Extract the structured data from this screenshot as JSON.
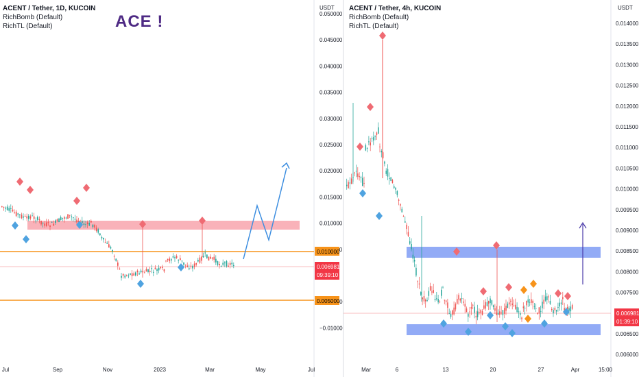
{
  "left_chart": {
    "header": {
      "symbol": "ACENT / Tether, 1D, KUCOIN",
      "indicators": [
        "RichBomb (Default)",
        "RichTL (Default)"
      ]
    },
    "annotation": "ACE !",
    "currency": "USDT",
    "y_ticks": [
      "0.050000",
      "0.045000",
      "0.040000",
      "0.035000",
      "0.030000",
      "0.025000",
      "0.020000",
      "0.015000",
      "0.010000",
      "0.005000",
      "−0.005000",
      "−0.010000"
    ],
    "x_ticks": [
      "Jul",
      "Sep",
      "Nov",
      "2023",
      "Mar",
      "May",
      "Jul"
    ],
    "price_tag": {
      "value": "0.006981",
      "timer": "09:39:10"
    },
    "level_labels": [
      "0.010000",
      "0.005000"
    ],
    "colors": {
      "support_line": "#f7931a",
      "resistance_zone": "#f8a5ad",
      "projection": "#3d8ee0",
      "price_tag": "#f23645"
    }
  },
  "right_chart": {
    "header": {
      "symbol": "ACENT / Tether, 4h, KUCOIN",
      "indicators": [
        "RichBomb (Default)",
        "RichTL (Default)"
      ]
    },
    "currency": "USDT",
    "y_ticks": [
      "0.014000",
      "0.013500",
      "0.013000",
      "0.012500",
      "0.012000",
      "0.011500",
      "0.011000",
      "0.010500",
      "0.010000",
      "0.009500",
      "0.009000",
      "0.008500",
      "0.008000",
      "0.007500",
      "0.007000",
      "0.006500",
      "0.006000"
    ],
    "x_ticks": [
      "Mar",
      "6",
      "13",
      "20",
      "27",
      "Apr",
      "15:00"
    ],
    "price_tag": {
      "value": "0.006981",
      "timer": "01:39:10"
    },
    "colors": {
      "zone": "#7f9cf5",
      "up": "#26a69a",
      "down": "#ef5350",
      "projection": "#4a3aa8"
    }
  }
}
